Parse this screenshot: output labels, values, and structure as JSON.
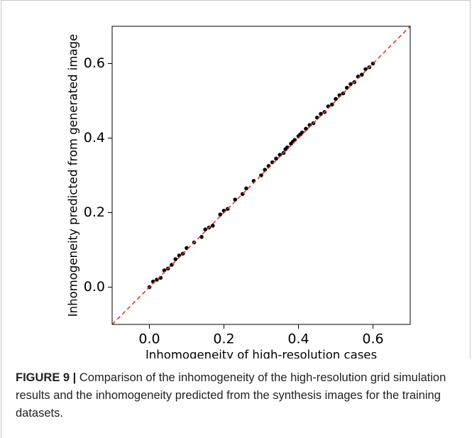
{
  "chart_data": {
    "type": "scatter",
    "xlabel": "Inhomogeneity of high-resolution cases",
    "ylabel": "Inhomogeneity predicted from generated image",
    "x": [
      0.0,
      0.01,
      0.02,
      0.03,
      0.04,
      0.05,
      0.06,
      0.07,
      0.08,
      0.09,
      0.1,
      0.12,
      0.14,
      0.15,
      0.16,
      0.17,
      0.19,
      0.2,
      0.21,
      0.23,
      0.25,
      0.26,
      0.28,
      0.3,
      0.31,
      0.32,
      0.33,
      0.34,
      0.35,
      0.36,
      0.365,
      0.37,
      0.38,
      0.385,
      0.39,
      0.4,
      0.405,
      0.41,
      0.42,
      0.43,
      0.44,
      0.45,
      0.46,
      0.47,
      0.48,
      0.49,
      0.5,
      0.51,
      0.52,
      0.53,
      0.54,
      0.55,
      0.56,
      0.57,
      0.58,
      0.59,
      0.6
    ],
    "y": [
      0.0,
      0.015,
      0.02,
      0.025,
      0.045,
      0.05,
      0.06,
      0.075,
      0.085,
      0.09,
      0.105,
      0.12,
      0.135,
      0.155,
      0.16,
      0.165,
      0.195,
      0.205,
      0.21,
      0.235,
      0.25,
      0.265,
      0.285,
      0.3,
      0.315,
      0.325,
      0.335,
      0.345,
      0.355,
      0.36,
      0.37,
      0.375,
      0.385,
      0.39,
      0.395,
      0.405,
      0.41,
      0.415,
      0.425,
      0.435,
      0.44,
      0.455,
      0.465,
      0.47,
      0.485,
      0.49,
      0.505,
      0.515,
      0.52,
      0.535,
      0.545,
      0.55,
      0.565,
      0.57,
      0.585,
      0.59,
      0.6
    ],
    "color": "#000000",
    "reference_line": {
      "color": "#e0392b",
      "style": "dashed"
    },
    "xlim": [
      -0.1,
      0.7
    ],
    "xticks": [
      {
        "value": 0,
        "label": "0.0"
      },
      0.2,
      0.4,
      0.6
    ],
    "ylim": [
      -0.1,
      0.7
    ],
    "yticks": [
      {
        "value": 0,
        "label": "0.0"
      },
      0.2,
      0.4,
      0.6
    ]
  },
  "caption": {
    "label": "FIGURE 9 |",
    "text": "Comparison of the inhomogeneity of the high-resolution grid simulation results and the inhomogeneity predicted from the synthesis images for the training datasets."
  }
}
